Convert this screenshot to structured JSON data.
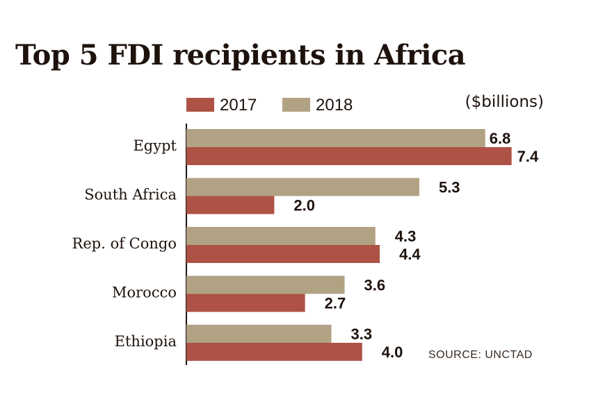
{
  "title": "Top 5 FDI recipients in Africa",
  "unit_label": "($billions)",
  "source": "SOURCE: UNCTAD",
  "colors": {
    "2017": "#ae5246",
    "2018": "#b1a283",
    "axis": "#1e120d"
  },
  "chart_data": {
    "type": "bar",
    "orientation": "horizontal",
    "title": "Top 5 FDI recipients in Africa",
    "categories": [
      "Egypt",
      "South Africa",
      "Rep. of Congo",
      "Morocco",
      "Ethiopia"
    ],
    "series": [
      {
        "name": "2018",
        "values": [
          6.8,
          5.3,
          4.3,
          3.6,
          3.3
        ]
      },
      {
        "name": "2017",
        "values": [
          7.4,
          2.0,
          4.4,
          2.7,
          4.0
        ]
      }
    ],
    "legend": [
      "2017",
      "2018"
    ],
    "legend_position": "top",
    "grid": false
  }
}
